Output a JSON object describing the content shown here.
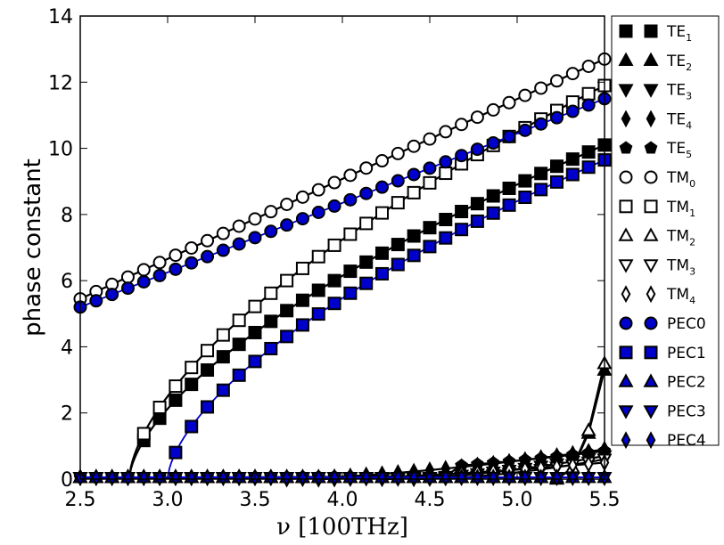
{
  "chart_data": {
    "type": "line",
    "title": "",
    "xlabel": "ν [100THz]",
    "ylabel": "phase constant",
    "xlim": [
      2.5,
      5.5
    ],
    "ylim": [
      0,
      14
    ],
    "xticks": [
      "2.5",
      "3.0",
      "3.5",
      "4.0",
      "4.5",
      "5.0",
      "5.5"
    ],
    "yticks": [
      "0",
      "2",
      "4",
      "6",
      "8",
      "10",
      "12",
      "14"
    ],
    "grid": false,
    "legend_position": "outside-right",
    "x_sample_start": 2.5,
    "x_sample_step": 0.0909,
    "colors": {
      "black": "#000000",
      "pec_fill": "#0000cc",
      "pec_line": "#0000cc",
      "open_fill": "#ffffff"
    },
    "series": [
      {
        "name": "TE",
        "sub": "1",
        "marker": "square",
        "style": "black",
        "start": 2.78,
        "end": 10.1
      },
      {
        "name": "TE",
        "sub": "2",
        "marker": "triangle-up",
        "style": "black",
        "start": 5.22,
        "end": 3.3,
        "curve": 2.2
      },
      {
        "name": "TE",
        "sub": "3",
        "marker": "triangle-down",
        "style": "black",
        "start": 4.2,
        "end": 0.7,
        "curve": 1.8
      },
      {
        "name": "TE",
        "sub": "4",
        "marker": "diamond",
        "style": "black",
        "start": 3.6,
        "end": 0.9,
        "curve": 1.6
      },
      {
        "name": "TE",
        "sub": "5",
        "marker": "pentagon",
        "style": "black",
        "start": 2.5,
        "end": 0.8,
        "curve": 2.5,
        "zero": true
      },
      {
        "name": "TM",
        "sub": "0",
        "marker": "circle",
        "style": "open",
        "start": 2.5,
        "start_value": 5.45,
        "end": 12.7
      },
      {
        "name": "TM",
        "sub": "1",
        "marker": "square",
        "style": "open",
        "start": 2.78,
        "end": 11.9
      },
      {
        "name": "TM",
        "sub": "2",
        "marker": "triangle-up",
        "style": "open",
        "start": 5.22,
        "end": 3.5,
        "curve": 2.2
      },
      {
        "name": "TM",
        "sub": "3",
        "marker": "triangle-down",
        "style": "open",
        "start": 4.4,
        "end": 0.6,
        "curve": 1.8
      },
      {
        "name": "TM",
        "sub": "4",
        "marker": "diamond",
        "style": "open",
        "start": 3.8,
        "end": 0.5,
        "curve": 1.6
      },
      {
        "name": "PEC0",
        "sub": "",
        "marker": "circle",
        "style": "pec",
        "start": 2.5,
        "start_value": 5.2,
        "end": 11.5
      },
      {
        "name": "PEC1",
        "sub": "",
        "marker": "square",
        "style": "pec",
        "start": 3.0,
        "end": 9.65
      },
      {
        "name": "PEC2",
        "sub": "",
        "marker": "triangle-up",
        "style": "pec",
        "start": 2.5,
        "end": 0.0,
        "zero": true
      },
      {
        "name": "PEC3",
        "sub": "",
        "marker": "triangle-down",
        "style": "pec",
        "start": 2.5,
        "end": 0.0,
        "zero": true
      },
      {
        "name": "PEC4",
        "sub": "",
        "marker": "diamond",
        "style": "pec",
        "start": 2.5,
        "end": 0.0,
        "zero": true
      }
    ]
  }
}
